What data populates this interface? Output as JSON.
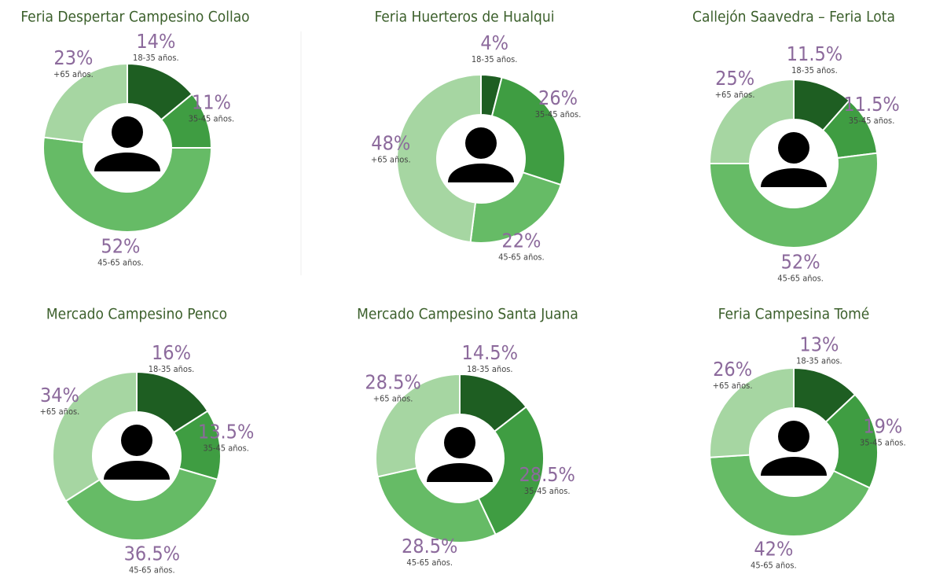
{
  "chart_data": [
    {
      "type": "pie",
      "title": "Feria Despertar Campesino Collao",
      "categories": [
        "18-35 años.",
        "35-45 años.",
        "45-65 años.",
        "+65 años."
      ],
      "values": [
        14,
        11,
        52,
        23
      ],
      "value_labels": [
        "14%",
        "11%",
        "52%",
        "23%"
      ],
      "colors": [
        "#1e5e22",
        "#3f9d42",
        "#66bb66",
        "#a6d6a2"
      ]
    },
    {
      "type": "pie",
      "title": "Feria Huerteros de Hualqui",
      "categories": [
        "18-35 años.",
        "35-45 años.",
        "45-65 años.",
        "+65 años."
      ],
      "values": [
        4,
        26,
        22,
        48
      ],
      "value_labels": [
        "4%",
        "26%",
        "22%",
        "48%"
      ],
      "colors": [
        "#1e5e22",
        "#3f9d42",
        "#66bb66",
        "#a6d6a2"
      ]
    },
    {
      "type": "pie",
      "title": "Callejón Saavedra – Feria Lota",
      "categories": [
        "18-35 años.",
        "35-45 años.",
        "45-65 años.",
        "+65 años."
      ],
      "values": [
        11.5,
        11.5,
        52,
        25
      ],
      "value_labels": [
        "11.5%",
        "11.5%",
        "52%",
        "25%"
      ],
      "colors": [
        "#1e5e22",
        "#3f9d42",
        "#66bb66",
        "#a6d6a2"
      ]
    },
    {
      "type": "pie",
      "title": "Mercado Campesino Penco",
      "categories": [
        "18-35 años.",
        "35-45 años.",
        "45-65 años.",
        "+65 años."
      ],
      "values": [
        16,
        13.5,
        36.5,
        34
      ],
      "value_labels": [
        "16%",
        "13.5%",
        "36.5%",
        "34%"
      ],
      "colors": [
        "#1e5e22",
        "#3f9d42",
        "#66bb66",
        "#a6d6a2"
      ]
    },
    {
      "type": "pie",
      "title": "Mercado Campesino Santa Juana",
      "categories": [
        "18-35 años.",
        "35-45 años.",
        "45-65 años.",
        "+65 años."
      ],
      "values": [
        14.5,
        28.5,
        28.5,
        28.5
      ],
      "value_labels": [
        "14.5%",
        "28.5%",
        "28.5%",
        "28.5%"
      ],
      "colors": [
        "#1e5e22",
        "#3f9d42",
        "#66bb66",
        "#a6d6a2"
      ]
    },
    {
      "type": "pie",
      "title": "Feria Campesina Tomé",
      "categories": [
        "18-35 años.",
        "35-45 años.",
        "45-65 años.",
        "+65 años."
      ],
      "values": [
        13,
        19,
        42,
        26
      ],
      "value_labels": [
        "13%",
        "19%",
        "42%",
        "26%"
      ],
      "colors": [
        "#1e5e22",
        "#3f9d42",
        "#66bb66",
        "#a6d6a2"
      ]
    }
  ]
}
